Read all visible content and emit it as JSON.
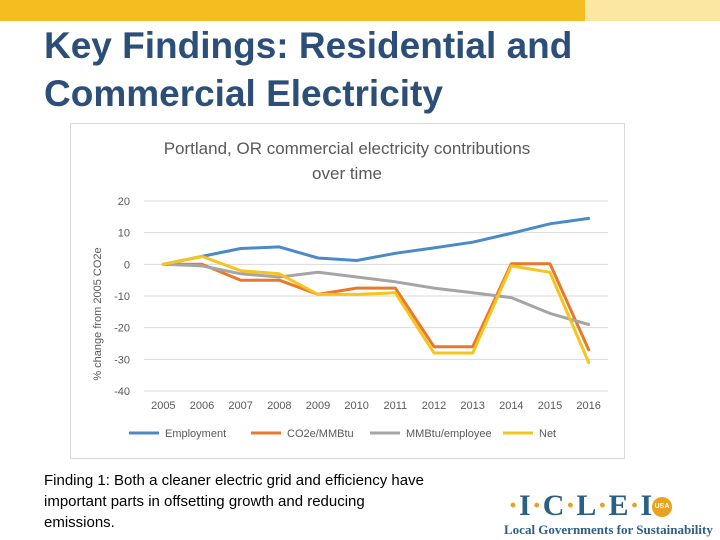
{
  "slide": {
    "title_line1": "Key Findings: Residential and",
    "title_line2": "Commercial Electricity",
    "caption_lines": [
      "Finding 1: Both a cleaner electric grid and efficiency have",
      "important parts in offsetting growth and reducing",
      "emissions."
    ]
  },
  "logo": {
    "letters": [
      "I",
      "C",
      "L",
      "E",
      "I"
    ],
    "badge": "USA",
    "tagline": "Local Governments for Sustainability"
  },
  "colors": {
    "top_bar": "#f5bd1f",
    "top_bar_light": "#fbe6a2",
    "title": "#2b4f78"
  },
  "chart_data": {
    "type": "line",
    "title_lines": [
      "Portland, OR commercial electricity contributions",
      "over time"
    ],
    "ylabel": "% change from 2005 CO2e",
    "xlabel": "",
    "ylim": [
      -40,
      20
    ],
    "yticks": [
      20,
      10,
      0,
      -10,
      -20,
      -30,
      -40
    ],
    "categories": [
      "2005",
      "2006",
      "2007",
      "2008",
      "2009",
      "2010",
      "2011",
      "2012",
      "2013",
      "2014",
      "2015",
      "2016"
    ],
    "grid": true,
    "legend_position": "bottom",
    "series": [
      {
        "name": "Employment",
        "color": "#4a8ac6",
        "values": [
          0,
          2.5,
          5,
          5.5,
          2,
          1.2,
          3.5,
          5.2,
          7,
          9.8,
          12.8,
          14.5
        ]
      },
      {
        "name": "CO2e/MMBtu",
        "color": "#e8792c",
        "values": [
          0,
          0,
          -5,
          -5,
          -9.5,
          -7.5,
          -7.5,
          -26,
          -26,
          0.2,
          0.2,
          -27
        ]
      },
      {
        "name": "MMBtu/employee",
        "color": "#a5a5a5",
        "values": [
          0,
          -0.5,
          -3,
          -4,
          -2.5,
          -4,
          -5.5,
          -7.5,
          -9,
          -10.5,
          -15.5,
          -19
        ]
      },
      {
        "name": "Net",
        "color": "#f7c41c",
        "values": [
          0,
          2.5,
          -2,
          -3,
          -9.5,
          -9.5,
          -9,
          -28,
          -28,
          -0.5,
          -2.5,
          -31
        ]
      }
    ]
  }
}
